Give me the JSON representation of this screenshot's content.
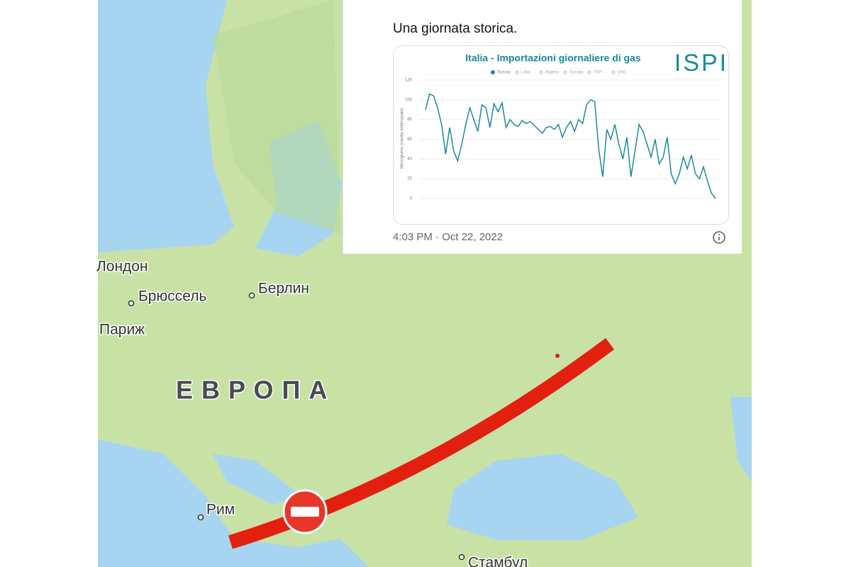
{
  "map": {
    "labels": [
      {
        "text": "Лондон"
      },
      {
        "text": "Брюссель"
      },
      {
        "text": "Берлин"
      },
      {
        "text": "Париж"
      },
      {
        "text": "ЕВРОПА"
      },
      {
        "text": "Рим"
      },
      {
        "text": "Стамбул"
      }
    ]
  },
  "tweet": {
    "text": "Una giornata storica.",
    "timestamp": "4:03 PM · Oct 22, 2022",
    "logo": "ISPI"
  },
  "chart_data": {
    "type": "line",
    "title": "Italia - Importazioni giornaliere di gas",
    "y_label": "Mmc/giorno (media settimanale)",
    "series": [
      {
        "name": "Russia",
        "color": "#1b8a9a",
        "values": [
          90,
          106,
          104,
          92,
          75,
          45,
          72,
          48,
          38,
          55,
          75,
          92,
          80,
          68,
          95,
          92,
          72,
          96,
          88,
          97,
          72,
          80,
          75,
          73,
          79,
          76,
          78,
          74,
          70,
          66,
          72,
          73,
          70,
          75,
          62,
          72,
          78,
          68,
          80,
          76,
          95,
          100,
          98,
          50,
          22,
          70,
          60,
          75,
          55,
          40,
          62,
          22,
          48,
          75,
          68,
          55,
          42,
          60,
          35,
          42,
          62,
          25,
          15,
          25,
          42,
          30,
          44,
          25,
          20,
          32,
          18,
          5,
          0
        ]
      }
    ],
    "legend_inactive": [
      "Libia",
      "Algeria",
      "Europa",
      "TAP",
      "GNL"
    ],
    "ylim": [
      0,
      120
    ],
    "yticks": [
      0,
      20,
      40,
      60,
      80,
      100,
      120
    ],
    "grid": true
  }
}
